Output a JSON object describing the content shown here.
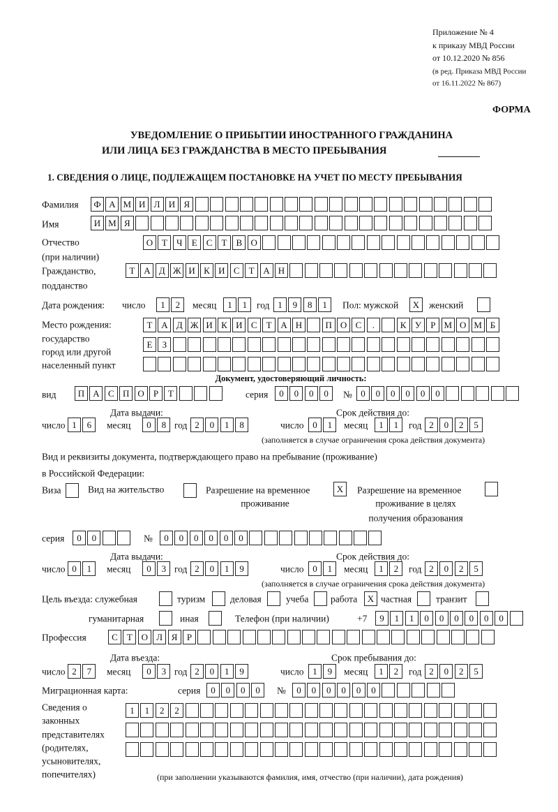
{
  "header": {
    "appendix": "Приложение № 4",
    "order": "к приказу МВД России",
    "order_date": "от 10.12.2020 № 856",
    "edition_line1": "(в ред. Приказа МВД России",
    "edition_line2": "от 16.11.2022 № 867)",
    "form_label": "ФОРМА",
    "title_line1": "УВЕДОМЛЕНИЕ О ПРИБЫТИИ ИНОСТРАННОГО ГРАЖДАНИНА",
    "title_line2": "ИЛИ ЛИЦА БЕЗ ГРАЖДАНСТВА В МЕСТО ПРЕБЫВАНИЯ",
    "section1": "1. СВЕДЕНИЯ О ЛИЦЕ, ПОДЛЕЖАЩЕМ ПОСТАНОВКЕ НА УЧЕТ ПО МЕСТУ ПРЕБЫВАНИЯ"
  },
  "labels": {
    "surname": "Фамилия",
    "name": "Имя",
    "patronymic": "Отчество",
    "patronymic_note": "(при наличии)",
    "citizenship1": "Гражданство,",
    "citizenship2": "подданство",
    "birth_date": "Дата рождения:",
    "day": "число",
    "month": "месяц",
    "year": "год",
    "sex_male": "Пол: мужской",
    "sex_female": "женский",
    "birth_place1": "Место рождения:",
    "birth_place2": "государство",
    "birth_place3": "город или другой",
    "birth_place4": "населенный пункт",
    "id_doc_heading": "Документ, удостоверяющий личность:",
    "kind": "вид",
    "series": "серия",
    "number": "№",
    "issue_date": "Дата выдачи:",
    "valid_until": "Срок действия до:",
    "validity_note": "(заполняется в случае ограничения срока действия документа)",
    "stay_doc1": "Вид и реквизиты документа, подтверждающего право на пребывание (проживание)",
    "stay_doc2": "в Российской Федерации:",
    "visa": "Виза",
    "residence_permit": "Вид на жительство",
    "temp_permit1": "Разрешение на временное",
    "temp_permit2": "проживание",
    "temp_edu1": "Разрешение на временное",
    "temp_edu2": "проживание в целях",
    "temp_edu3": "получения образования",
    "purpose": "Цель въезда: служебная",
    "tourism": "туризм",
    "business": "деловая",
    "study": "учеба",
    "work": "работа",
    "private": "частная",
    "transit": "транзит",
    "humanitarian": "гуманитарная",
    "other": "иная",
    "phone": "Телефон (при наличии)",
    "phone_prefix": "+7",
    "profession": "Профессия",
    "entry_date": "Дата въезда:",
    "stay_until": "Срок пребывания до:",
    "migration_card": "Миграционная карта:",
    "reps1": "Сведения о",
    "reps2": "законных",
    "reps3": "представителях",
    "reps4": "(родителях,",
    "reps5": "усыновителях,",
    "reps6": "попечителях)",
    "reps_note": "(при заполнении указываются фамилия, имя, отчество (при наличии), дата рождения)"
  },
  "person": {
    "surname": "ФАМИЛИЯ",
    "name": "ИМЯ",
    "patronymic": "ОТЧЕСТВО",
    "citizenship": "ТАДЖИКИСТАН",
    "birth_day": "12",
    "birth_month": "11",
    "birth_year": "1981",
    "sex_male": "X",
    "sex_female": "",
    "birth_place_row1": "ТАДЖИКИСТАН ПОС. КУРМОМБ",
    "birth_place_row2": "ЕЗ",
    "birth_place_row3": ""
  },
  "id_document": {
    "kind": "ПАСПОРТ",
    "series": "0000",
    "number": "000000",
    "issue_day": "16",
    "issue_month": "08",
    "issue_year": "2018",
    "valid_day": "01",
    "valid_month": "11",
    "valid_year": "2025"
  },
  "stay_document": {
    "visa": "",
    "residence_permit": "",
    "temp_permit": "X",
    "temp_edu": "",
    "series": "00",
    "number": "000000",
    "issue_day": "01",
    "issue_month": "03",
    "issue_year": "2019",
    "valid_day": "01",
    "valid_month": "12",
    "valid_year": "2025"
  },
  "purpose": {
    "official": "",
    "tourism": "",
    "business": "",
    "study": "",
    "work": "X",
    "private": "",
    "transit": "",
    "humanitarian": "",
    "other": ""
  },
  "phone": "911000000",
  "profession": "СТОЛЯР",
  "entry": {
    "entry_day": "27",
    "entry_month": "03",
    "entry_year": "2019",
    "stay_day": "19",
    "stay_month": "12",
    "stay_year": "2025"
  },
  "migration_card": {
    "series": "0000",
    "number": "000000"
  },
  "representatives": {
    "row1": "1122",
    "row2": "",
    "row3": ""
  }
}
